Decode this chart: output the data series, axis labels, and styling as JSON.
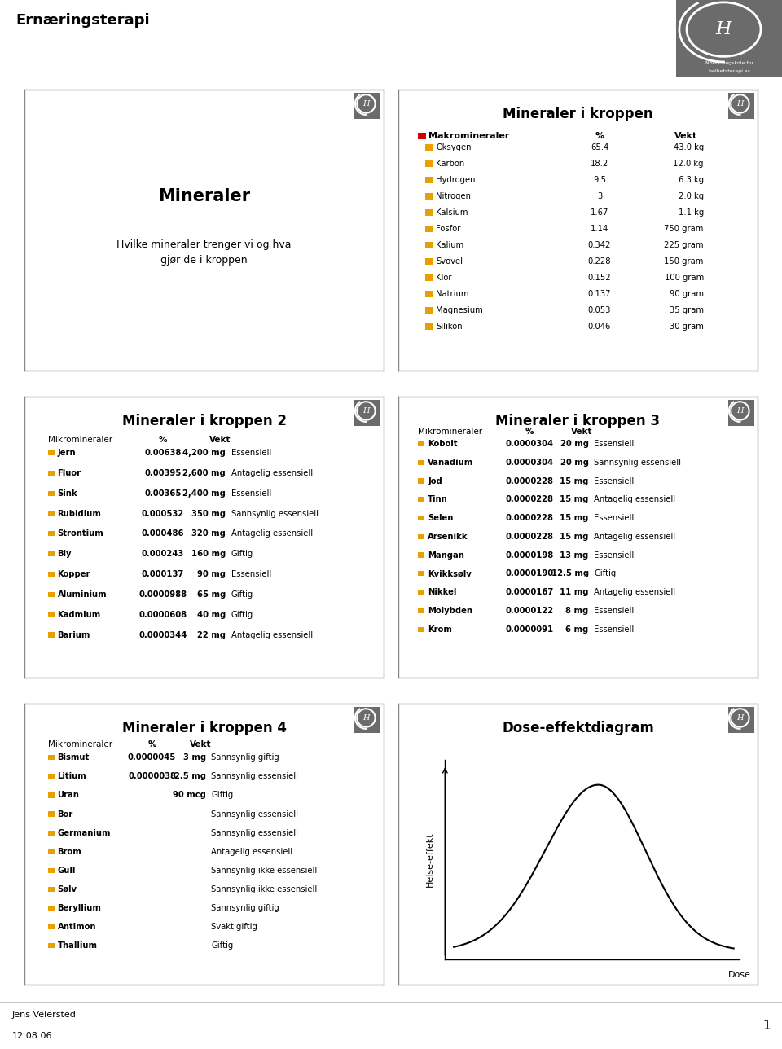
{
  "page_title": "Ernæringsterapi",
  "page_num": "1",
  "date": "12.08.06",
  "author": "Jens Veiersted",
  "bg_color": "#ffffff",
  "slide_border_color": "#888888",
  "slide_bg": "#ffffff",
  "logo_bg": "#6b6b6b",
  "logo_text1": "Norsk høgskole for",
  "logo_text2": "helhetsterapi as",
  "slide1": {
    "title": "Mineraler",
    "subtitle": "Hvilke mineraler trenger vi og hva\ngjør de i kroppen"
  },
  "slide2": {
    "title": "Mineraler i kroppen",
    "header": [
      "Makromineraler",
      "%",
      "Vekt"
    ],
    "header_color": "#cc0000",
    "dot_color": "#e8a000",
    "rows": [
      [
        "Oksygen",
        "65.4",
        "43.0 kg"
      ],
      [
        "Karbon",
        "18.2",
        "12.0 kg"
      ],
      [
        "Hydrogen",
        "9.5",
        "6.3 kg"
      ],
      [
        "Nitrogen",
        "3",
        "2.0 kg"
      ],
      [
        "Kalsium",
        "1.67",
        "1.1 kg"
      ],
      [
        "Fosfor",
        "1.14",
        "750 gram"
      ],
      [
        "Kalium",
        "0.342",
        "225 gram"
      ],
      [
        "Svovel",
        "0.228",
        "150 gram"
      ],
      [
        "Klor",
        "0.152",
        "100 gram"
      ],
      [
        "Natrium",
        "0.137",
        "90 gram"
      ],
      [
        "Magnesium",
        "0.053",
        "35 gram"
      ],
      [
        "Silikon",
        "0.046",
        "30 gram"
      ]
    ]
  },
  "slide3": {
    "title": "Mineraler i kroppen 2",
    "header": [
      "Mikromineraler",
      "%",
      "Vekt"
    ],
    "dot_color": "#e8a000",
    "rows": [
      [
        "Jern",
        "0.00638",
        "4,200 mg",
        "Essensiell"
      ],
      [
        "Fluor",
        "0.00395",
        "2,600 mg",
        "Antagelig essensiell"
      ],
      [
        "Sink",
        "0.00365",
        "2,400 mg",
        "Essensiell"
      ],
      [
        "Rubidium",
        "0.000532",
        "350 mg",
        "Sannsynlig essensiell"
      ],
      [
        "Strontium",
        "0.000486",
        "320 mg",
        "Antagelig essensiell"
      ],
      [
        "Bly",
        "0.000243",
        "160 mg",
        "Giftig"
      ],
      [
        "Kopper",
        "0.000137",
        "90 mg",
        "Essensiell"
      ],
      [
        "Aluminium",
        "0.0000988",
        "65 mg",
        "Giftig"
      ],
      [
        "Kadmium",
        "0.0000608",
        "40 mg",
        "Giftig"
      ],
      [
        "Barium",
        "0.0000344",
        "22 mg",
        "Antagelig essensiell"
      ]
    ]
  },
  "slide4": {
    "title": "Mineraler i kroppen 3",
    "header": [
      "Mikromineraler",
      "%",
      "Vekt"
    ],
    "dot_color": "#e8a000",
    "rows": [
      [
        "Kobolt",
        "0.0000304",
        "20 mg",
        "Essensiell"
      ],
      [
        "Vanadium",
        "0.0000304",
        "20 mg",
        "Sannsynlig essensiell"
      ],
      [
        "Jod",
        "0.0000228",
        "15 mg",
        "Essensiell"
      ],
      [
        "Tinn",
        "0.0000228",
        "15 mg",
        "Antagelig essensiell"
      ],
      [
        "Selen",
        "0.0000228",
        "15 mg",
        "Essensiell"
      ],
      [
        "Arsenikk",
        "0.0000228",
        "15 mg",
        "Antagelig essensiell"
      ],
      [
        "Mangan",
        "0.0000198",
        "13 mg",
        "Essensiell"
      ],
      [
        "Kvikksølv",
        "0.0000190",
        "12.5 mg",
        "Giftig"
      ],
      [
        "Nikkel",
        "0.0000167",
        "11 mg",
        "Antagelig essensiell"
      ],
      [
        "Molybden",
        "0.0000122",
        "8 mg",
        "Essensiell"
      ],
      [
        "Krom",
        "0.0000091",
        "6 mg",
        "Essensiell"
      ]
    ]
  },
  "slide5": {
    "title": "Mineraler i kroppen 4",
    "header": [
      "Mikromineraler",
      "%",
      "Vekt"
    ],
    "dot_color": "#e8a000",
    "rows": [
      [
        "Bismut",
        "0.0000045",
        "3 mg",
        "Sannsynlig giftig"
      ],
      [
        "Litium",
        "0.0000038",
        "2.5 mg",
        "Sannsynlig essensiell"
      ],
      [
        "Uran",
        "",
        "90 mcg",
        "Giftig"
      ],
      [
        "Bor",
        "",
        "",
        "Sannsynlig essensiell"
      ],
      [
        "Germanium",
        "",
        "",
        "Sannsynlig essensiell"
      ],
      [
        "Brom",
        "",
        "",
        "Antagelig essensiell"
      ],
      [
        "Gull",
        "",
        "",
        "Sannsynlig ikke essensiell"
      ],
      [
        "Sølv",
        "",
        "",
        "Sannsynlig ikke essensiell"
      ],
      [
        "Beryllium",
        "",
        "",
        "Sannsynlig giftig"
      ],
      [
        "Antimon",
        "",
        "",
        "Svakt giftig"
      ],
      [
        "Thallium",
        "",
        "",
        "Giftig"
      ]
    ]
  },
  "slide6": {
    "title": "Dose-effektdiagram",
    "xlabel": "Dose",
    "ylabel": "Helse-effekt"
  }
}
